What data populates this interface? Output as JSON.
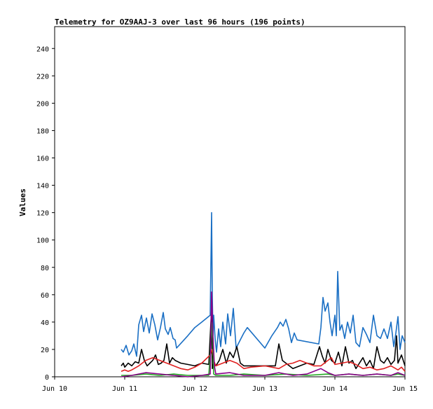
{
  "chart_data": {
    "type": "line",
    "title": "Telemetry for OZ9AAJ-3 over last 96 hours (196 points)",
    "xlabel": "",
    "ylabel": "Values",
    "xlim": [
      0,
      5
    ],
    "ylim": [
      0,
      256
    ],
    "x_ticks": [
      0,
      1,
      2,
      3,
      4,
      5
    ],
    "x_tick_labels": [
      "Jun 10",
      "Jun 11",
      "Jun 12",
      "Jun 13",
      "Jun 14",
      "Jun 15"
    ],
    "y_ticks": [
      0,
      20,
      40,
      60,
      80,
      100,
      120,
      140,
      160,
      180,
      200,
      220,
      240
    ],
    "grid": false,
    "legend": "none",
    "series": [
      {
        "color": "#1a6fc4",
        "x": [
          0.95,
          0.98,
          1.02,
          1.06,
          1.1,
          1.13,
          1.17,
          1.2,
          1.24,
          1.27,
          1.31,
          1.35,
          1.39,
          1.43,
          1.47,
          1.51,
          1.55,
          1.58,
          1.62,
          1.65,
          1.69,
          1.72,
          1.74,
          1.9,
          2.0,
          2.1,
          2.22,
          2.24,
          2.25,
          2.26,
          2.27,
          2.29,
          2.31,
          2.34,
          2.37,
          2.4,
          2.44,
          2.47,
          2.51,
          2.55,
          2.59,
          2.62,
          2.66,
          2.7,
          2.75,
          3.0,
          3.1,
          3.18,
          3.22,
          3.26,
          3.3,
          3.34,
          3.38,
          3.42,
          3.46,
          3.77,
          3.8,
          3.83,
          3.86,
          3.9,
          3.93,
          3.96,
          4.0,
          4.02,
          4.04,
          4.07,
          4.1,
          4.14,
          4.18,
          4.22,
          4.26,
          4.3,
          4.35,
          4.4,
          4.45,
          4.5,
          4.55,
          4.6,
          4.65,
          4.7,
          4.75,
          4.8,
          4.84,
          4.87,
          4.9,
          4.93,
          4.96,
          5.0
        ],
        "y": [
          20,
          18,
          23,
          16,
          19,
          24,
          15,
          38,
          45,
          33,
          43,
          32,
          46,
          38,
          27,
          36,
          47,
          35,
          31,
          36,
          28,
          27,
          21,
          30,
          36,
          40,
          45,
          120,
          60,
          30,
          45,
          28,
          18,
          35,
          22,
          40,
          24,
          46,
          30,
          50,
          21,
          24,
          28,
          32,
          36,
          21,
          30,
          36,
          40,
          37,
          42,
          35,
          25,
          32,
          27,
          24,
          36,
          58,
          48,
          54,
          40,
          30,
          45,
          30,
          77,
          34,
          38,
          28,
          40,
          32,
          45,
          25,
          22,
          36,
          31,
          25,
          45,
          30,
          28,
          35,
          28,
          40,
          22,
          32,
          44,
          20,
          30,
          25
        ]
      },
      {
        "color": "#000000",
        "x": [
          0.95,
          0.98,
          1.0,
          1.05,
          1.1,
          1.15,
          1.2,
          1.24,
          1.28,
          1.32,
          1.36,
          1.4,
          1.44,
          1.48,
          1.52,
          1.56,
          1.6,
          1.64,
          1.68,
          1.72,
          1.8,
          1.9,
          2.0,
          2.1,
          2.2,
          2.24,
          2.25,
          2.27,
          2.3,
          2.35,
          2.4,
          2.45,
          2.5,
          2.55,
          2.6,
          2.65,
          2.7,
          2.8,
          3.0,
          3.15,
          3.2,
          3.25,
          3.3,
          3.35,
          3.4,
          3.5,
          3.6,
          3.7,
          3.78,
          3.82,
          3.86,
          3.9,
          3.95,
          4.0,
          4.05,
          4.1,
          4.15,
          4.2,
          4.25,
          4.3,
          4.35,
          4.4,
          4.45,
          4.5,
          4.55,
          4.6,
          4.65,
          4.7,
          4.75,
          4.8,
          4.85,
          4.88,
          4.9,
          4.95,
          5.0
        ],
        "y": [
          8,
          10,
          7,
          10,
          8,
          11,
          10,
          20,
          12,
          8,
          10,
          12,
          16,
          9,
          10,
          12,
          24,
          10,
          14,
          12,
          10,
          9,
          8,
          10,
          9,
          50,
          6,
          10,
          8,
          12,
          20,
          10,
          18,
          14,
          22,
          10,
          8,
          8,
          8,
          8,
          24,
          12,
          10,
          8,
          6,
          8,
          10,
          9,
          22,
          15,
          10,
          20,
          12,
          10,
          18,
          8,
          22,
          10,
          12,
          6,
          10,
          14,
          8,
          12,
          6,
          22,
          12,
          10,
          14,
          9,
          12,
          30,
          10,
          16,
          8
        ]
      },
      {
        "color": "#e02020",
        "x": [
          0.95,
          1.0,
          1.05,
          1.1,
          1.2,
          1.3,
          1.4,
          1.5,
          1.6,
          1.7,
          1.8,
          1.9,
          2.0,
          2.1,
          2.22,
          2.25,
          2.27,
          2.3,
          2.4,
          2.5,
          2.6,
          2.7,
          2.8,
          3.0,
          3.2,
          3.3,
          3.4,
          3.5,
          3.6,
          3.7,
          3.8,
          3.85,
          3.9,
          3.95,
          4.0,
          4.1,
          4.2,
          4.3,
          4.4,
          4.5,
          4.6,
          4.7,
          4.8,
          4.9,
          4.95,
          5.0
        ],
        "y": [
          4,
          5,
          4,
          5,
          8,
          12,
          14,
          12,
          10,
          8,
          6,
          5,
          7,
          10,
          16,
          20,
          12,
          8,
          10,
          12,
          10,
          6,
          7,
          8,
          6,
          9,
          10,
          12,
          10,
          8,
          8,
          10,
          12,
          14,
          9,
          10,
          11,
          9,
          6,
          7,
          5,
          6,
          8,
          5,
          7,
          4
        ]
      },
      {
        "color": "#22aa22",
        "x": [
          0.95,
          1.1,
          1.3,
          1.5,
          1.7,
          1.9,
          2.1,
          2.2,
          2.25,
          2.27,
          2.3,
          2.5,
          2.7,
          3.0,
          3.3,
          3.6,
          3.9,
          4.0,
          4.2,
          4.4,
          4.6,
          4.8,
          4.9,
          5.0
        ],
        "y": [
          1,
          1,
          2,
          1,
          2,
          1,
          1,
          1,
          40,
          2,
          1,
          1,
          2,
          1,
          2,
          1,
          2,
          1,
          2,
          1,
          2,
          1,
          2,
          1
        ]
      },
      {
        "color": "#880088",
        "x": [
          0.95,
          1.1,
          1.3,
          1.5,
          1.7,
          1.9,
          2.1,
          2.22,
          2.24,
          2.26,
          2.28,
          2.3,
          2.5,
          2.7,
          3.0,
          3.2,
          3.4,
          3.6,
          3.8,
          3.9,
          4.0,
          4.2,
          4.4,
          4.6,
          4.8,
          4.9,
          5.0
        ],
        "y": [
          0,
          1,
          3,
          2,
          1,
          0,
          1,
          2,
          62,
          30,
          8,
          2,
          3,
          1,
          1,
          3,
          1,
          2,
          6,
          3,
          1,
          2,
          1,
          2,
          1,
          3,
          1
        ]
      }
    ]
  }
}
